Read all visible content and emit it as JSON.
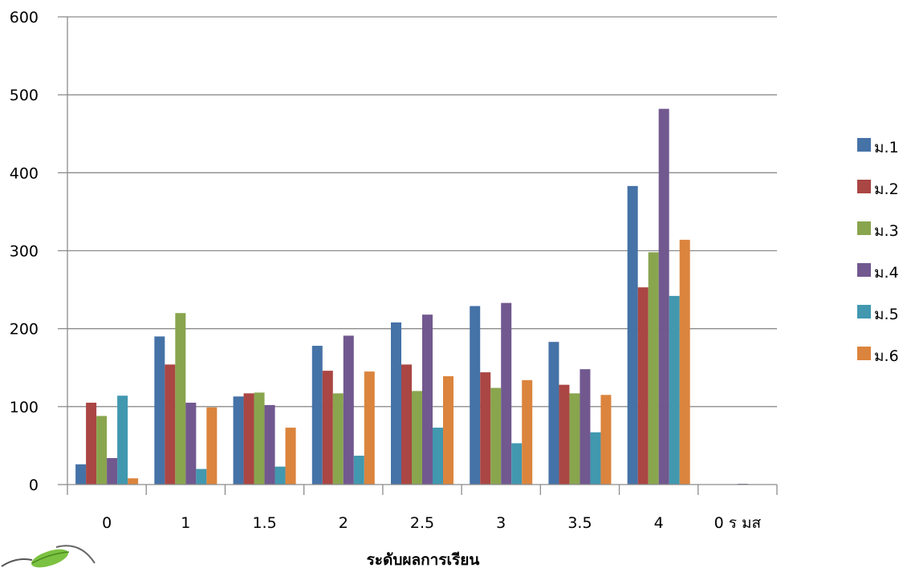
{
  "chart_data": {
    "type": "bar",
    "title": "",
    "xlabel": "ระดับผลการเรียน",
    "ylabel": "",
    "ylim": [
      0,
      600
    ],
    "yticks": [
      0,
      100,
      200,
      300,
      400,
      500,
      600
    ],
    "grid": true,
    "legend": "right",
    "categories": [
      "0",
      "1",
      "1.5",
      "2",
      "2.5",
      "3",
      "3.5",
      "4",
      "0 ร มส"
    ],
    "series": [
      {
        "name": "ม.1",
        "color": "#4572A7",
        "values": [
          26,
          190,
          113,
          178,
          208,
          229,
          183,
          383,
          0
        ]
      },
      {
        "name": "ม.2",
        "color": "#AA4643",
        "values": [
          105,
          154,
          117,
          146,
          154,
          144,
          128,
          253,
          0
        ]
      },
      {
        "name": "ม.3",
        "color": "#89A54E",
        "values": [
          88,
          220,
          118,
          117,
          120,
          124,
          117,
          298,
          0
        ]
      },
      {
        "name": "ม.4",
        "color": "#71588F",
        "values": [
          34,
          105,
          102,
          191,
          218,
          233,
          148,
          482,
          1
        ]
      },
      {
        "name": "ม.5",
        "color": "#4198AF",
        "values": [
          114,
          20,
          23,
          37,
          73,
          53,
          67,
          242,
          0
        ]
      },
      {
        "name": "ม.6",
        "color": "#DB843D",
        "values": [
          8,
          99,
          73,
          145,
          139,
          134,
          115,
          314,
          0
        ]
      }
    ]
  },
  "logo": {
    "icon": "leaf-logo-icon"
  }
}
